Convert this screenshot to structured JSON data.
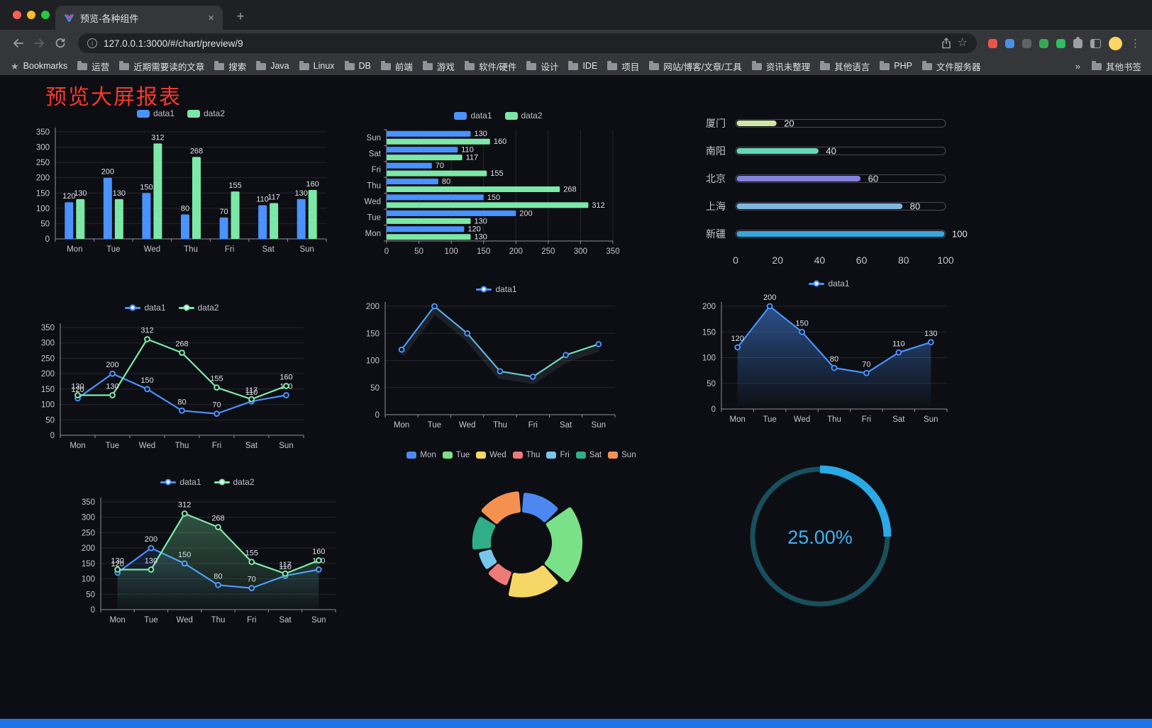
{
  "browser": {
    "tab_title": "预览-各种组件",
    "url": "127.0.0.1:3000/#/chart/preview/9",
    "traffic_lights": [
      "#ff5f57",
      "#febc2e",
      "#28c840"
    ],
    "toolbar_icons": [
      {
        "name": "capture-extension-icon",
        "color": "#e8564a"
      },
      {
        "name": "translate-extension-icon",
        "color": "#4a90e2"
      },
      {
        "name": "dark-extension-icon",
        "color": "#5f6368"
      },
      {
        "name": "green-extension-icon",
        "color": "#34a853"
      },
      {
        "name": "star-extension-icon",
        "color": "#2dbe60"
      },
      {
        "name": "extensions-puzzle-icon",
        "color": "#9aa0a6"
      },
      {
        "name": "sidebar-icon",
        "color": "#9aa0a6"
      },
      {
        "name": "profile-avatar",
        "color": "#fdd663"
      },
      {
        "name": "menu-kebab-icon",
        "color": "#9aa0a6"
      }
    ]
  },
  "bookmarks": {
    "manager_label": "Bookmarks",
    "folders": [
      "运营",
      "近期需要读的文章",
      "搜索",
      "Java",
      "Linux",
      "DB",
      "前端",
      "游戏",
      "软件/硬件",
      "设计",
      "IDE",
      "项目",
      "网站/博客/文章/工具",
      "资讯未整理",
      "其他语言",
      "PHP",
      "文件服务器"
    ],
    "overflow_label": "»",
    "other_label": "其他书签"
  },
  "page": {
    "title": "预览大屏报表",
    "title_color": "#f4392d",
    "background": "#0d0e13",
    "footer_color": "#2273e8"
  },
  "palette": {
    "bg": "#0d0e13",
    "axis_line": "#8e8fa0",
    "axis_label": "#c4c5d0",
    "grid": "rgba(255,255,255,0.10)",
    "value_label": "#dfe0e8"
  },
  "chart_data": [
    {
      "id": "c1",
      "type": "bar",
      "categories": [
        "Mon",
        "Tue",
        "Wed",
        "Thu",
        "Fri",
        "Sat",
        "Sun"
      ],
      "series": [
        {
          "name": "data1",
          "color": "#4992ff",
          "values": [
            120,
            200,
            150,
            80,
            70,
            110,
            130
          ]
        },
        {
          "name": "data2",
          "color": "#7ce8a8",
          "values": [
            130,
            130,
            312,
            268,
            155,
            117,
            160
          ]
        }
      ],
      "ylim": [
        0,
        350
      ],
      "yticks": [
        0,
        50,
        100,
        150,
        200,
        250,
        300,
        350
      ],
      "legend_position": "top",
      "labels": true
    },
    {
      "id": "c2",
      "type": "hbar",
      "categories": [
        "Mon",
        "Tue",
        "Wed",
        "Thu",
        "Fri",
        "Sat",
        "Sun"
      ],
      "series": [
        {
          "name": "data1",
          "color": "#4992ff",
          "values": [
            120,
            200,
            150,
            80,
            70,
            110,
            130
          ]
        },
        {
          "name": "data2",
          "color": "#7ce8a8",
          "values": [
            130,
            130,
            312,
            268,
            155,
            117,
            160
          ]
        }
      ],
      "xlim": [
        0,
        350
      ],
      "xticks": [
        0,
        50,
        100,
        150,
        200,
        250,
        300,
        350
      ],
      "legend_position": "top",
      "labels": true
    },
    {
      "id": "c3",
      "type": "progress",
      "max": 100,
      "items": [
        {
          "label": "厦门",
          "value": 20,
          "color": "#cfe6a4"
        },
        {
          "label": "南阳",
          "value": 40,
          "color": "#66d6b5"
        },
        {
          "label": "北京",
          "value": 60,
          "color": "#8481dd"
        },
        {
          "label": "上海",
          "value": 80,
          "color": "#7fb6dc"
        },
        {
          "label": "新疆",
          "value": 100,
          "color": "#3aa7dc"
        }
      ],
      "xticks": [
        0,
        20,
        40,
        60,
        80,
        100
      ]
    },
    {
      "id": "c4",
      "type": "line",
      "categories": [
        "Mon",
        "Tue",
        "Wed",
        "Thu",
        "Fri",
        "Sat",
        "Sun"
      ],
      "series": [
        {
          "name": "data1",
          "color": "#4992ff",
          "values": [
            120,
            200,
            150,
            80,
            70,
            110,
            130
          ]
        },
        {
          "name": "data2",
          "color": "#7ce8a8",
          "values": [
            130,
            130,
            312,
            268,
            155,
            117,
            160
          ]
        }
      ],
      "ylim": [
        0,
        350
      ],
      "yticks": [
        0,
        50,
        100,
        150,
        200,
        250,
        300,
        350
      ],
      "legend_position": "top",
      "labels": true
    },
    {
      "id": "c5",
      "type": "line",
      "categories": [
        "Mon",
        "Tue",
        "Wed",
        "Thu",
        "Fri",
        "Sat",
        "Sun"
      ],
      "series": [
        {
          "name": "data1",
          "color": "#4992ff",
          "gradient": [
            "#4992ff",
            "#7ce8a8"
          ],
          "shadow": true,
          "values": [
            120,
            200,
            150,
            80,
            70,
            110,
            130
          ]
        }
      ],
      "ylim": [
        0,
        200
      ],
      "yticks": [
        0,
        50,
        100,
        150,
        200
      ],
      "legend_position": "top",
      "labels": false
    },
    {
      "id": "c6",
      "type": "line",
      "categories": [
        "Mon",
        "Tue",
        "Wed",
        "Thu",
        "Fri",
        "Sat",
        "Sun"
      ],
      "series": [
        {
          "name": "data1",
          "color": "#4992ff",
          "area": [
            "rgba(73,146,255,0.50)",
            "rgba(73,146,255,0)"
          ],
          "values": [
            120,
            200,
            150,
            80,
            70,
            110,
            130
          ]
        }
      ],
      "ylim": [
        0,
        200
      ],
      "yticks": [
        0,
        50,
        100,
        150,
        200
      ],
      "legend_position": "top",
      "labels": true
    },
    {
      "id": "c7",
      "type": "line",
      "categories": [
        "Mon",
        "Tue",
        "Wed",
        "Thu",
        "Fri",
        "Sat",
        "Sun"
      ],
      "series": [
        {
          "name": "data1",
          "color": "#4992ff",
          "area": [
            "rgba(73,146,255,0.15)",
            "rgba(73,146,255,0)"
          ],
          "values": [
            120,
            200,
            150,
            80,
            70,
            110,
            130
          ]
        },
        {
          "name": "data2",
          "color": "#7ce8a8",
          "area": [
            "rgba(124,232,168,0.32)",
            "rgba(124,232,168,0.03)"
          ],
          "values": [
            130,
            130,
            312,
            268,
            155,
            117,
            160
          ]
        }
      ],
      "ylim": [
        0,
        350
      ],
      "yticks": [
        0,
        50,
        100,
        150,
        200,
        250,
        300,
        350
      ],
      "legend_position": "top",
      "labels": true
    },
    {
      "id": "c8",
      "type": "donut",
      "rose": true,
      "categories": [
        "Mon",
        "Tue",
        "Wed",
        "Thu",
        "Fri",
        "Sat",
        "Sun"
      ],
      "values": [
        120,
        200,
        150,
        80,
        70,
        110,
        130
      ],
      "colors": [
        "#4d88f0",
        "#7be188",
        "#f6d666",
        "#ee7979",
        "#79c6ed",
        "#2fae87",
        "#f49150"
      ],
      "legend_position": "top"
    },
    {
      "id": "c9",
      "type": "gauge",
      "value": 25,
      "label": "25.00%",
      "color": "#2ba9e6",
      "track_color": "#17505c",
      "text_color": "#3db2f0"
    }
  ]
}
